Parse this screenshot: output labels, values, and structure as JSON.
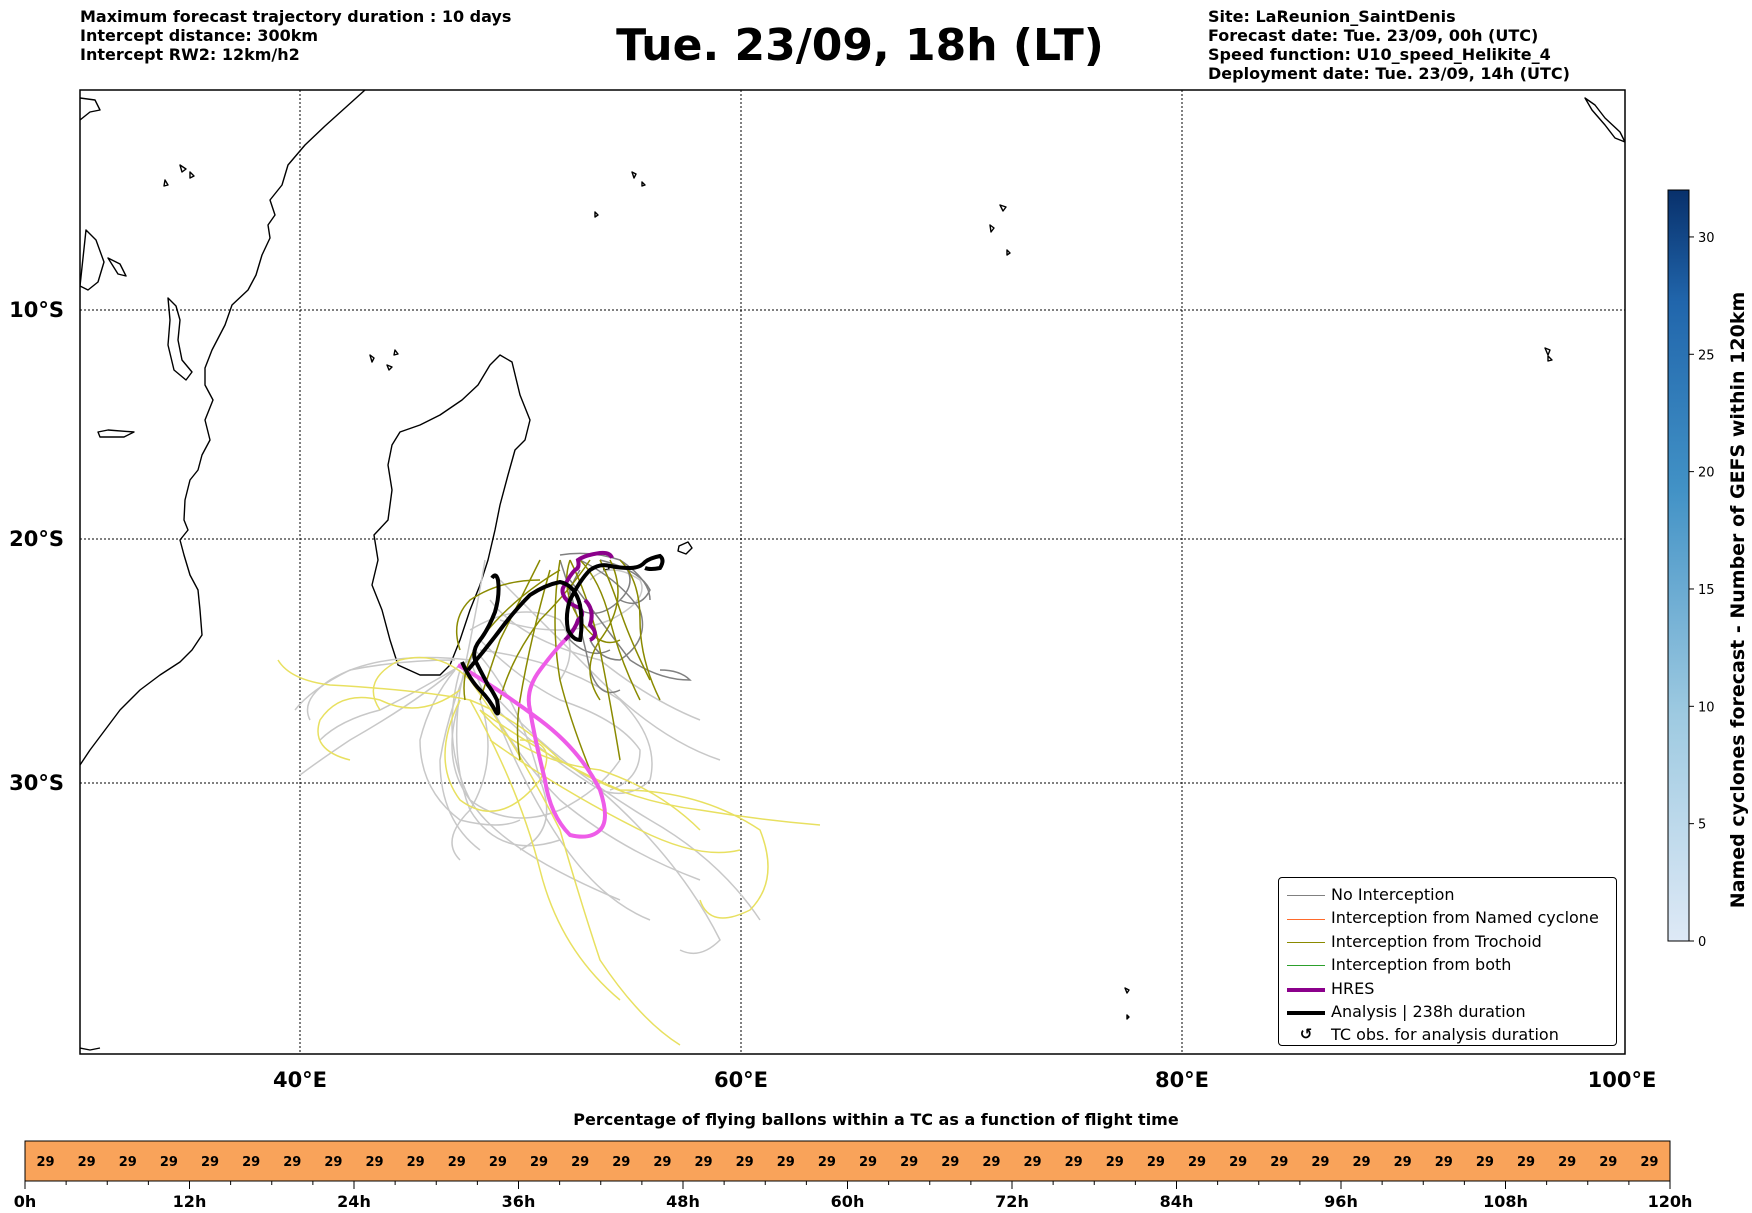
{
  "header": {
    "left_lines": [
      "Maximum forecast trajectory duration : 10 days",
      "Intercept distance: 300km",
      "Intercept RW2: 12km/h2"
    ],
    "title": "Tue. 23/09, 18h (LT)",
    "right_lines": [
      "Site: LaReunion_SaintDenis",
      "Forecast date: Tue. 23/09, 00h (UTC)",
      "Speed function: U10_speed_Helikite_4",
      "Deployment date: Tue. 23/09, 14h (UTC)"
    ]
  },
  "map": {
    "lon_ticks": [
      "40°E",
      "60°E",
      "80°E",
      "100°E"
    ],
    "lat_ticks": [
      "10°S",
      "20°S",
      "30°S"
    ],
    "lon_values": [
      40,
      60,
      80,
      100
    ],
    "lat_values": [
      -10,
      -20,
      -30
    ],
    "extent": {
      "lon": [
        30,
        100
      ],
      "lat": [
        -42,
        0
      ]
    },
    "colors": {
      "no_interception": "#808080",
      "named_cyclone": "#ff6a2b",
      "trochoid": "#8a8a00",
      "both": "#2ca02c",
      "hres": "#8b008b",
      "analysis": "#000000",
      "light_grey": "#c8c8c8",
      "yellow": "#e8e060",
      "magenta": "#ee5ce8"
    }
  },
  "legend": {
    "items": [
      {
        "label": "No Interception",
        "color": "#808080",
        "width": 1.5
      },
      {
        "label": "Interception from Named cyclone",
        "color": "#ff6a2b",
        "width": 1.5
      },
      {
        "label": "Interception from Trochoid",
        "color": "#8a8a00",
        "width": 1.5
      },
      {
        "label": "Interception from both",
        "color": "#2ca02c",
        "width": 1.5
      },
      {
        "label": "HRES",
        "color": "#8b008b",
        "width": 4
      },
      {
        "label": "Analysis | 238h duration",
        "color": "#000000",
        "width": 4
      },
      {
        "label": "TC obs. for analysis duration",
        "symbol": "↺"
      }
    ]
  },
  "colorbar": {
    "label": "Named cyclones forecast - Number of GEFS within 120km",
    "ticks": [
      "0",
      "5",
      "10",
      "15",
      "20",
      "25",
      "30"
    ],
    "tick_values": [
      0,
      5,
      10,
      15,
      20,
      25,
      30
    ],
    "max": 32,
    "colors": {
      "low": "#dee9f6",
      "high": "#08306b"
    }
  },
  "flight_bar": {
    "title": "Percentage of flying ballons within a TC as a function of flight time",
    "cell_value": "29",
    "cell_count": 40,
    "color": "#f9a35a",
    "axis_labels": [
      "0h",
      "12h",
      "24h",
      "36h",
      "48h",
      "60h",
      "72h",
      "84h",
      "96h",
      "108h",
      "120h"
    ],
    "axis_hours": [
      0,
      12,
      24,
      36,
      48,
      60,
      72,
      84,
      96,
      108,
      120
    ]
  }
}
